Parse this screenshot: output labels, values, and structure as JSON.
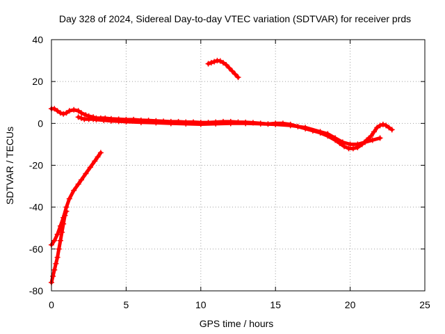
{
  "chart_data": {
    "type": "scatter",
    "title": "Day 328 of 2024, Sidereal Day-to-day VTEC variation (SDTVAR) for receiver prds",
    "xlabel": "GPS time / hours",
    "ylabel": "SDTVAR / TECUs",
    "xlim": [
      0,
      25
    ],
    "ylim": [
      -80,
      40
    ],
    "xticks": [
      0,
      5,
      10,
      15,
      20,
      25
    ],
    "yticks": [
      -80,
      -60,
      -40,
      -20,
      0,
      20,
      40
    ],
    "grid": true,
    "marker": "+",
    "color": "#ff0000",
    "series": [
      {
        "name": "main-band",
        "x": [
          0.0,
          0.2,
          0.4,
          0.6,
          0.8,
          1.0,
          1.2,
          1.5,
          1.8,
          2.0,
          2.3,
          2.5,
          2.8,
          3.0,
          3.3,
          3.6,
          4.0,
          4.5,
          5.0,
          5.5,
          6.0,
          6.5,
          7.0,
          7.5,
          8.0,
          8.5,
          9.0,
          9.5,
          10.0,
          10.5,
          11.0,
          11.5,
          12.0,
          12.5,
          13.0,
          13.5,
          14.0,
          14.5,
          15.0,
          15.5,
          16.0,
          16.5,
          17.0,
          17.5,
          18.0,
          18.5,
          19.0,
          19.3,
          19.6,
          19.9,
          20.2,
          20.5,
          20.8,
          21.1,
          21.4,
          21.6,
          21.8,
          22.0,
          22.2,
          22.4,
          22.6,
          22.8
        ],
        "y": [
          7,
          7,
          6,
          5,
          4.5,
          5,
          6,
          6.5,
          6,
          5,
          4,
          3.5,
          3,
          2.5,
          2.5,
          2.5,
          2.2,
          2,
          1.8,
          1.8,
          1.5,
          1.4,
          1.2,
          1,
          0.8,
          0.8,
          0.6,
          0.6,
          0.4,
          0.4,
          0.6,
          0.8,
          0.8,
          0.6,
          0.5,
          0.3,
          0,
          -0.3,
          0,
          0,
          -0.5,
          -1.5,
          -2.5,
          -3.5,
          -4.5,
          -6,
          -8,
          -9.5,
          -11,
          -12,
          -12,
          -11.5,
          -10,
          -8,
          -6,
          -4,
          -2,
          -1,
          -0.5,
          -1,
          -2,
          -3
        ]
      },
      {
        "name": "secondary-band",
        "x": [
          1.8,
          2.0,
          2.2,
          2.5,
          2.8,
          3.0,
          3.5,
          4.0,
          4.5,
          5.0,
          6.0,
          7.0,
          8.0,
          9.0,
          10.0,
          11.0,
          12.0,
          13.0,
          14.0,
          15.0,
          16.0,
          17.0,
          18.0,
          18.5,
          19.0,
          19.5,
          20.0,
          20.5,
          21.0,
          21.5,
          22.0
        ],
        "y": [
          3,
          2.5,
          2,
          2,
          2,
          1.8,
          1.5,
          1.2,
          1,
          0.8,
          0.5,
          0.3,
          0,
          -0.2,
          -0.4,
          -0.2,
          0,
          0,
          -0.2,
          -0.5,
          -1,
          -2,
          -4,
          -5,
          -7,
          -9,
          -10,
          -10,
          -9,
          -8,
          -7
        ]
      },
      {
        "name": "steep-rise-lower",
        "x": [
          0.0,
          0.1,
          0.2,
          0.3,
          0.4,
          0.5,
          0.6,
          0.7,
          0.8,
          0.9,
          1.0
        ],
        "y": [
          -76,
          -73,
          -70,
          -67,
          -64,
          -60,
          -56,
          -52,
          -48,
          -44,
          -42
        ]
      },
      {
        "name": "steep-rise-upper",
        "x": [
          0.0,
          0.2,
          0.4,
          0.6,
          0.8,
          1.0,
          1.2,
          1.5,
          1.8,
          2.0,
          2.3,
          2.6,
          2.9,
          3.1,
          3.3
        ],
        "y": [
          -58,
          -56,
          -53,
          -49,
          -45,
          -40,
          -36,
          -32,
          -29,
          -27,
          -24,
          -21,
          -18,
          -16,
          -14
        ]
      },
      {
        "name": "midday-arc",
        "x": [
          10.5,
          10.7,
          10.9,
          11.1,
          11.3,
          11.5,
          11.7,
          11.9,
          12.1,
          12.3,
          12.5
        ],
        "y": [
          28.5,
          29,
          29.5,
          30,
          29.8,
          29,
          28,
          26.5,
          25,
          23.5,
          22
        ]
      }
    ]
  }
}
